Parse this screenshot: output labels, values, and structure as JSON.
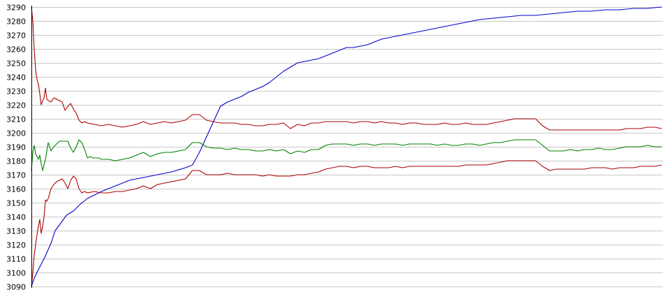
{
  "chart_data": {
    "type": "line",
    "title": "",
    "xlabel": "",
    "ylabel": "",
    "ylim": [
      3090,
      3290
    ],
    "yticks": [
      3090,
      3100,
      3110,
      3120,
      3130,
      3140,
      3150,
      3160,
      3170,
      3180,
      3190,
      3200,
      3210,
      3220,
      3230,
      3240,
      3250,
      3260,
      3270,
      3280,
      3290
    ],
    "ytick_labels": [
      "3090",
      "3100",
      "3110",
      "3120",
      "3130",
      "3140",
      "3150",
      "3160",
      "3170",
      "3180",
      "3190",
      "3200",
      "3210",
      "3220",
      "3230",
      "3240",
      "3250",
      "3260",
      "3270",
      "3280",
      "3290"
    ],
    "xlim": [
      0,
      450
    ],
    "grid": {
      "horizontal": true,
      "vertical": false
    },
    "legend": "none",
    "series": [
      {
        "color": "#0000cc",
        "x": [
          0,
          2,
          5,
          8,
          10,
          14,
          17,
          20,
          25,
          30,
          35,
          40,
          50,
          60,
          70,
          80,
          90,
          100,
          110,
          115,
          120,
          125,
          130,
          135,
          140,
          145,
          150,
          155,
          160,
          165,
          170,
          175,
          180,
          185,
          190,
          195,
          200,
          205,
          210,
          215,
          220,
          225,
          230,
          235,
          240,
          245,
          250,
          255,
          260,
          265,
          270,
          275,
          280,
          285,
          290,
          295,
          300,
          305,
          310,
          320,
          330,
          340,
          350,
          360,
          370,
          380,
          390,
          400,
          410,
          420,
          430,
          440,
          450
        ],
        "y": [
          3090,
          3096,
          3102,
          3108,
          3112,
          3121,
          3130,
          3134,
          3141,
          3144,
          3149,
          3153,
          3158,
          3162,
          3166,
          3168,
          3170,
          3172,
          3175,
          3177,
          3186,
          3197,
          3208,
          3219,
          3222,
          3224,
          3226,
          3229,
          3231,
          3233,
          3236,
          3240,
          3244,
          3247,
          3250,
          3251,
          3252,
          3253,
          3255,
          3257,
          3259,
          3261,
          3261,
          3262,
          3263,
          3265,
          3267,
          3268,
          3269,
          3270,
          3271,
          3272,
          3273,
          3274,
          3275,
          3276,
          3277,
          3278,
          3279,
          3281,
          3282,
          3283,
          3284,
          3284,
          3285,
          3286,
          3287,
          3287,
          3288,
          3288,
          3289,
          3289,
          3290
        ]
      },
      {
        "color": "#008000",
        "x": [
          0,
          1,
          2,
          3,
          5,
          6,
          7,
          8,
          10,
          12,
          14,
          16,
          18,
          20,
          22,
          24,
          26,
          28,
          30,
          32,
          34,
          36,
          38,
          40,
          42,
          44,
          46,
          48,
          50,
          55,
          60,
          65,
          70,
          75,
          80,
          85,
          90,
          95,
          100,
          105,
          110,
          115,
          120,
          125,
          130,
          135,
          140,
          145,
          150,
          155,
          160,
          165,
          170,
          175,
          180,
          185,
          190,
          195,
          200,
          205,
          210,
          215,
          220,
          225,
          230,
          235,
          240,
          245,
          250,
          255,
          260,
          265,
          270,
          275,
          280,
          285,
          290,
          295,
          300,
          305,
          310,
          315,
          320,
          325,
          330,
          335,
          340,
          345,
          350,
          355,
          360,
          365,
          370,
          375,
          380,
          385,
          390,
          395,
          400,
          405,
          410,
          415,
          420,
          425,
          430,
          435,
          440,
          445,
          450
        ],
        "y": [
          3173,
          3186,
          3191,
          3185,
          3181,
          3184,
          3178,
          3173,
          3181,
          3193,
          3187,
          3190,
          3192,
          3194,
          3194,
          3194,
          3194,
          3189,
          3186,
          3190,
          3195,
          3193,
          3188,
          3182,
          3183,
          3182,
          3182,
          3182,
          3181,
          3181,
          3180,
          3181,
          3182,
          3184,
          3186,
          3183,
          3185,
          3186,
          3186,
          3187,
          3188,
          3193,
          3193,
          3190,
          3189,
          3189,
          3188,
          3189,
          3188,
          3188,
          3187,
          3187,
          3188,
          3187,
          3188,
          3185,
          3187,
          3186,
          3188,
          3188,
          3191,
          3192,
          3192,
          3192,
          3191,
          3192,
          3192,
          3191,
          3192,
          3192,
          3192,
          3191,
          3192,
          3192,
          3192,
          3192,
          3191,
          3192,
          3191,
          3191,
          3192,
          3192,
          3191,
          3192,
          3193,
          3193,
          3194,
          3195,
          3195,
          3195,
          3195,
          3191,
          3187,
          3187,
          3187,
          3188,
          3187,
          3188,
          3188,
          3189,
          3188,
          3188,
          3189,
          3190,
          3190,
          3190,
          3191,
          3190,
          3190
        ]
      },
      {
        "color": "#aa0000",
        "x": [
          0,
          1,
          2,
          3,
          4,
          5,
          6,
          7,
          8,
          9,
          10,
          11,
          12,
          14,
          16,
          18,
          20,
          22,
          24,
          26,
          28,
          30,
          32,
          34,
          36,
          38,
          40,
          45,
          50,
          55,
          60,
          65,
          70,
          75,
          80,
          85,
          90,
          95,
          100,
          105,
          110,
          115,
          120,
          125,
          130,
          135,
          140,
          145,
          150,
          155,
          160,
          165,
          170,
          175,
          180,
          185,
          190,
          195,
          200,
          205,
          210,
          215,
          220,
          225,
          230,
          235,
          240,
          245,
          250,
          255,
          260,
          265,
          270,
          275,
          280,
          285,
          290,
          295,
          300,
          305,
          310,
          315,
          320,
          325,
          330,
          335,
          340,
          345,
          350,
          355,
          360,
          365,
          370,
          375,
          380,
          385,
          390,
          395,
          400,
          405,
          410,
          415,
          420,
          425,
          430,
          435,
          440,
          445,
          450
        ],
        "y": [
          3290,
          3280,
          3260,
          3245,
          3238,
          3235,
          3228,
          3220,
          3223,
          3225,
          3232,
          3224,
          3223,
          3222,
          3225,
          3224,
          3223,
          3222,
          3216,
          3219,
          3221,
          3217,
          3214,
          3209,
          3207,
          3208,
          3207,
          3206,
          3205,
          3206,
          3205,
          3204,
          3205,
          3206,
          3208,
          3206,
          3207,
          3208,
          3207,
          3208,
          3209,
          3213,
          3213,
          3209,
          3208,
          3207,
          3207,
          3207,
          3206,
          3206,
          3205,
          3205,
          3206,
          3206,
          3207,
          3203,
          3206,
          3205,
          3207,
          3207,
          3208,
          3208,
          3208,
          3208,
          3207,
          3208,
          3208,
          3207,
          3208,
          3207,
          3207,
          3206,
          3207,
          3207,
          3206,
          3206,
          3206,
          3207,
          3206,
          3206,
          3207,
          3206,
          3206,
          3206,
          3207,
          3208,
          3209,
          3210,
          3210,
          3210,
          3210,
          3205,
          3202,
          3202,
          3202,
          3202,
          3202,
          3202,
          3202,
          3202,
          3202,
          3202,
          3202,
          3203,
          3203,
          3203,
          3204,
          3204,
          3203
        ]
      },
      {
        "color": "#aa0000",
        "x": [
          0,
          1,
          2,
          3,
          4,
          5,
          6,
          7,
          8,
          9,
          10,
          11,
          12,
          14,
          16,
          18,
          20,
          22,
          24,
          26,
          28,
          30,
          32,
          34,
          36,
          38,
          40,
          45,
          50,
          55,
          60,
          65,
          70,
          75,
          80,
          85,
          90,
          95,
          100,
          105,
          110,
          115,
          120,
          125,
          130,
          135,
          140,
          145,
          150,
          155,
          160,
          165,
          170,
          175,
          180,
          185,
          190,
          195,
          200,
          205,
          210,
          215,
          220,
          225,
          230,
          235,
          240,
          245,
          250,
          255,
          260,
          265,
          270,
          275,
          280,
          285,
          290,
          295,
          300,
          305,
          310,
          315,
          320,
          325,
          330,
          335,
          340,
          345,
          350,
          355,
          360,
          365,
          370,
          375,
          380,
          385,
          390,
          395,
          400,
          405,
          410,
          415,
          420,
          425,
          430,
          435,
          440,
          445,
          450
        ],
        "y": [
          3090,
          3100,
          3112,
          3120,
          3127,
          3133,
          3138,
          3128,
          3133,
          3140,
          3152,
          3151,
          3153,
          3160,
          3163,
          3165,
          3166,
          3167,
          3164,
          3160,
          3166,
          3169,
          3167,
          3160,
          3157,
          3158,
          3157,
          3158,
          3157,
          3157,
          3158,
          3158,
          3159,
          3160,
          3162,
          3160,
          3163,
          3164,
          3165,
          3166,
          3167,
          3173,
          3173,
          3170,
          3170,
          3170,
          3171,
          3170,
          3170,
          3170,
          3170,
          3169,
          3170,
          3169,
          3169,
          3169,
          3170,
          3170,
          3171,
          3172,
          3174,
          3175,
          3176,
          3176,
          3175,
          3176,
          3176,
          3175,
          3175,
          3175,
          3176,
          3175,
          3176,
          3176,
          3176,
          3176,
          3176,
          3176,
          3176,
          3176,
          3177,
          3177,
          3177,
          3177,
          3178,
          3179,
          3180,
          3180,
          3180,
          3180,
          3180,
          3176,
          3173,
          3174,
          3174,
          3174,
          3174,
          3174,
          3175,
          3175,
          3175,
          3174,
          3175,
          3175,
          3175,
          3176,
          3176,
          3176,
          3177
        ]
      }
    ]
  }
}
